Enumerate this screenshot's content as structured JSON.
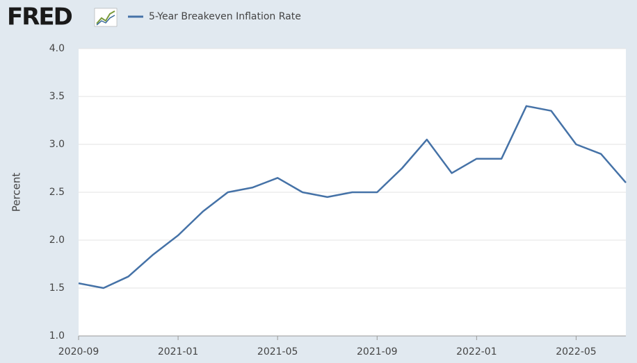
{
  "logo": "FRED",
  "chart_data": {
    "type": "line",
    "ylabel": "Percent",
    "x": [
      "2020-09",
      "2020-10",
      "2020-11",
      "2020-12",
      "2021-01",
      "2021-02",
      "2021-03",
      "2021-04",
      "2021-05",
      "2021-06",
      "2021-07",
      "2021-08",
      "2021-09",
      "2021-10",
      "2021-11",
      "2021-12",
      "2022-01",
      "2022-02",
      "2022-03",
      "2022-04",
      "2022-05",
      "2022-06",
      "2022-07"
    ],
    "series": [
      {
        "name": "5-Year Breakeven Inflation Rate",
        "color": "#4572a7",
        "values": [
          1.55,
          1.5,
          1.62,
          1.85,
          2.05,
          2.3,
          2.5,
          2.55,
          2.65,
          2.5,
          2.45,
          2.5,
          2.5,
          2.75,
          3.05,
          2.7,
          2.85,
          2.85,
          3.4,
          3.35,
          3.0,
          2.9,
          2.6
        ]
      }
    ],
    "xlim": [
      "2020-09",
      "2022-07"
    ],
    "xticks": [
      "2020-09",
      "2021-01",
      "2021-05",
      "2021-09",
      "2022-01",
      "2022-05"
    ],
    "ylim": [
      1,
      4
    ],
    "yticks": [
      {
        "value": 1,
        "label": "1.0"
      },
      1.5,
      {
        "value": 2,
        "label": "2.0"
      },
      2.5,
      {
        "value": 3,
        "label": "3.0"
      },
      3.5,
      {
        "value": 4,
        "label": "4.0"
      }
    ],
    "grid": true
  }
}
